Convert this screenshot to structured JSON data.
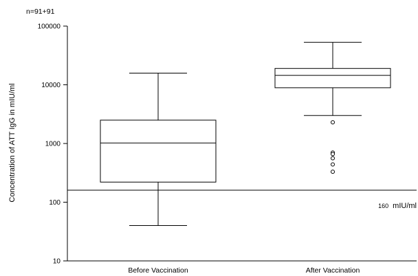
{
  "chart_data": {
    "type": "boxplot",
    "annotation": "n=91+91",
    "ylabel": "Concentration of ATT IgG in mIU/ml",
    "xlabel": "",
    "yscale": "log",
    "ylim": [
      10,
      100000
    ],
    "yticks": [
      10,
      100,
      1000,
      10000,
      100000
    ],
    "ytick_labels": [
      "10",
      "100",
      "1000",
      "10000",
      "100000"
    ],
    "categories": [
      "Before Vaccination",
      "After Vaccination"
    ],
    "boxes": [
      {
        "category": "Before Vaccination",
        "whisker_low": 40,
        "q1": 220,
        "median": 1020,
        "q3": 2500,
        "whisker_high": 15800,
        "outliers": []
      },
      {
        "category": "After Vaccination",
        "whisker_low": 3000,
        "q1": 8900,
        "median": 14500,
        "q3": 19000,
        "whisker_high": 53000,
        "outliers": [
          2300,
          700,
          660,
          560,
          440,
          330
        ]
      }
    ],
    "reference_line": {
      "value": 160,
      "label_value": "160",
      "label_unit": "mIU/ml"
    },
    "grid": false
  }
}
